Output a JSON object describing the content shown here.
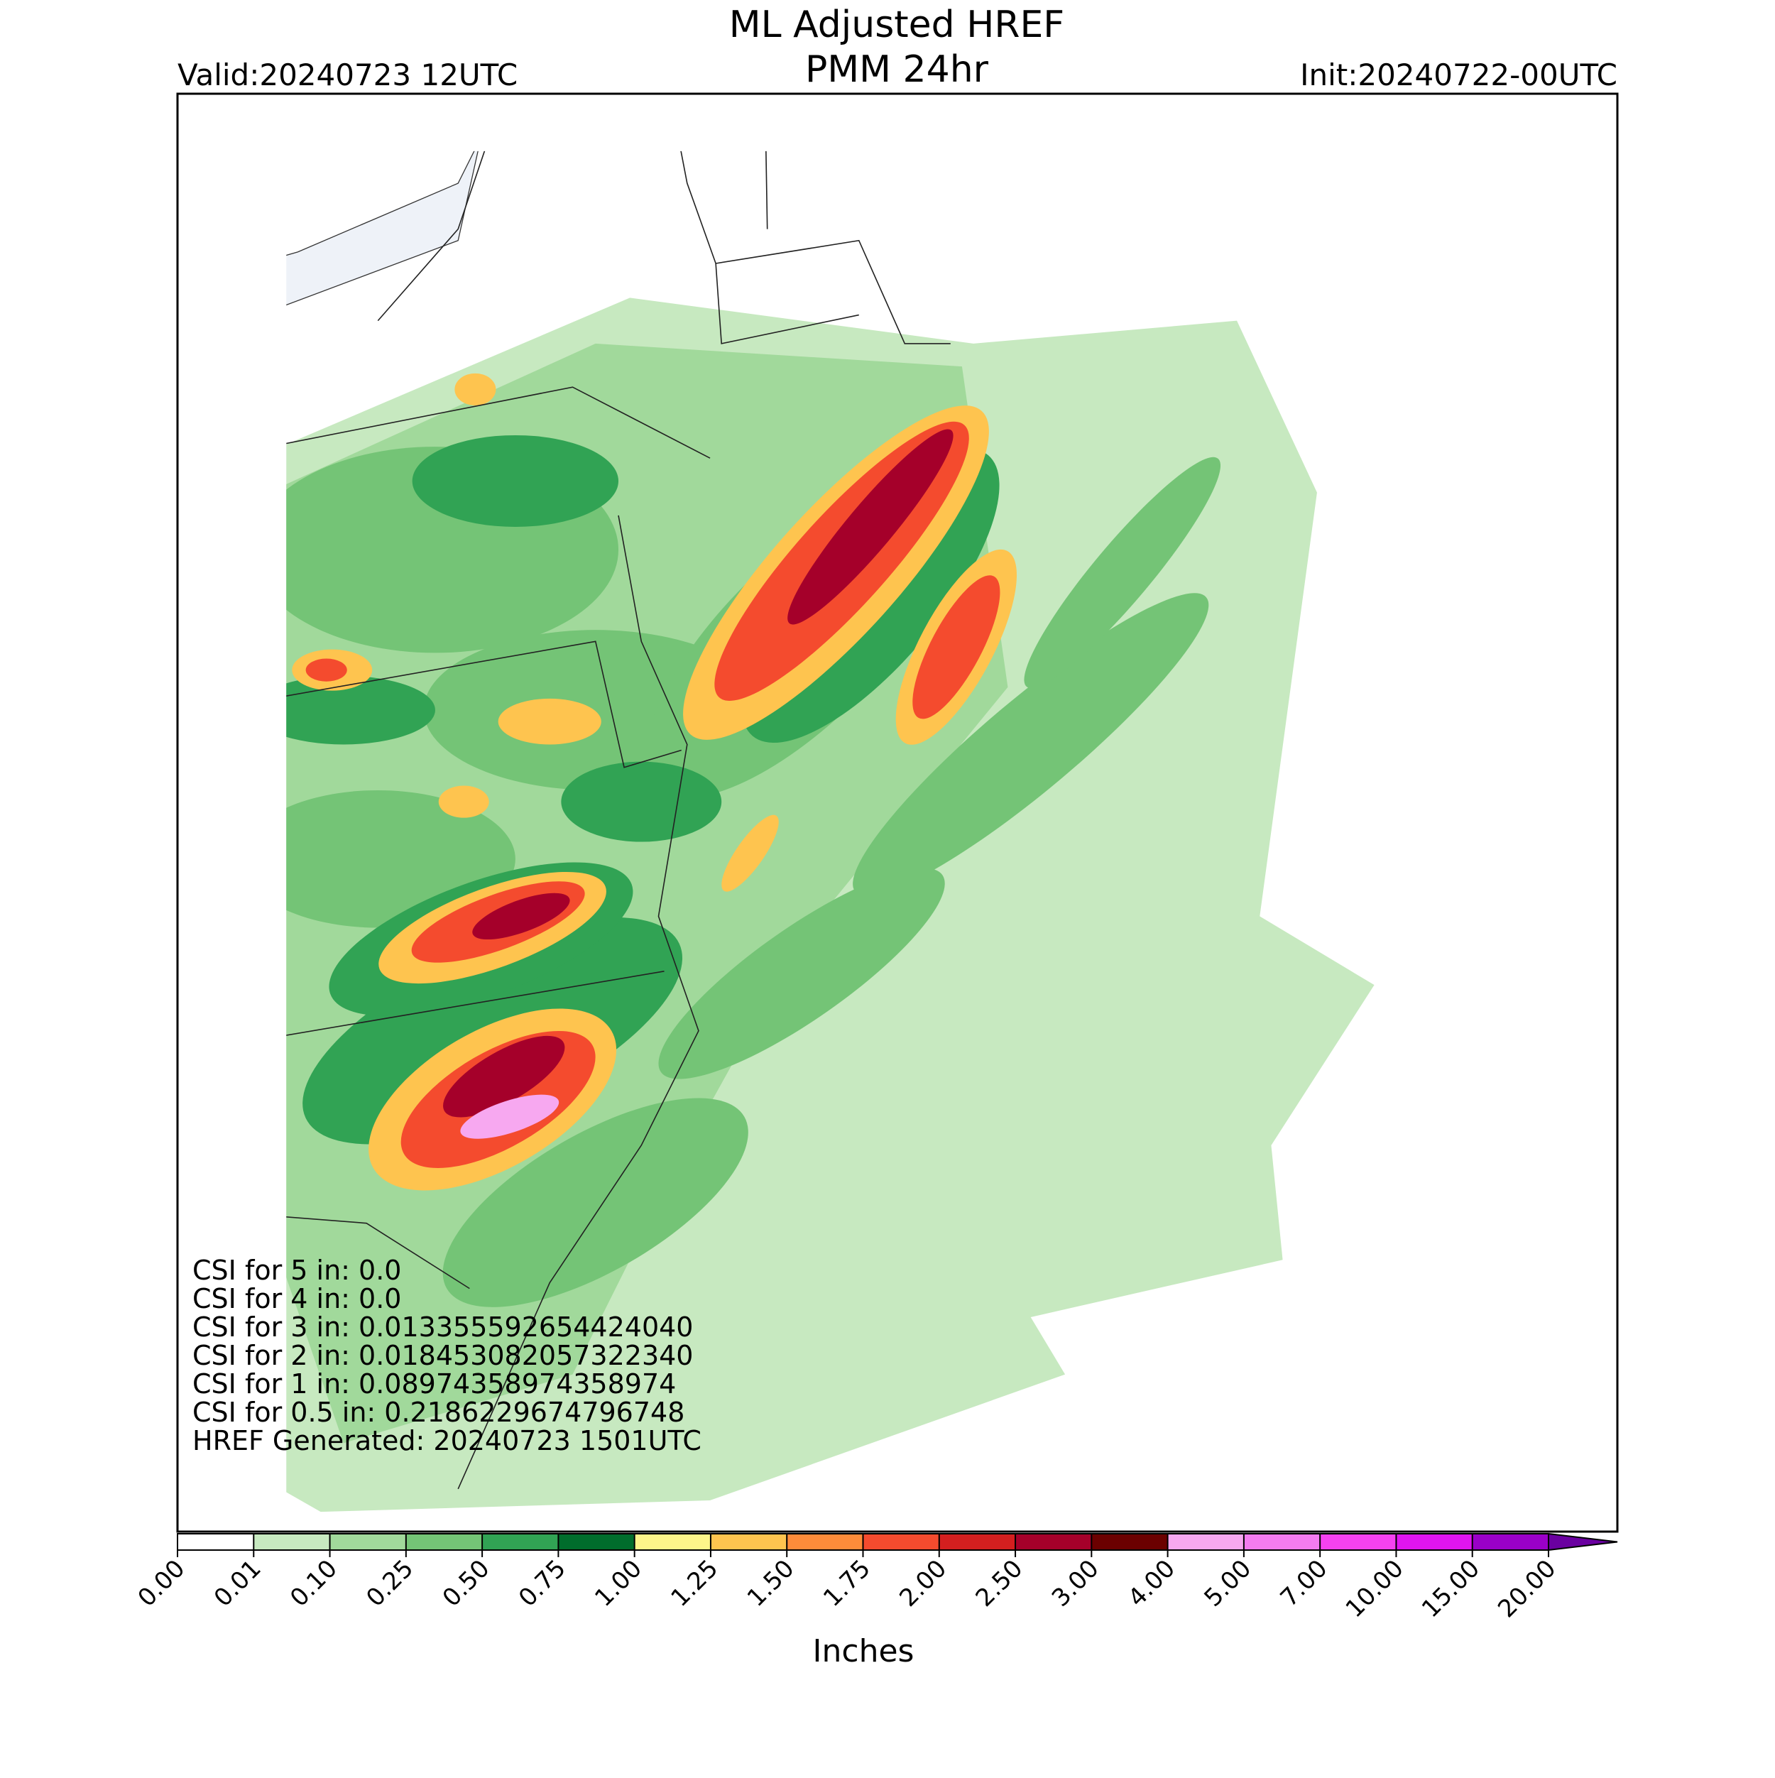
{
  "chart_data": {
    "type": "map",
    "title": "ML Adjusted HREF",
    "subtitle": "PMM 24hr",
    "valid": "Valid:20240723 12UTC",
    "init": "Init:20240722-00UTC",
    "annotations": [
      "CSI for 5 in: 0.0",
      "CSI for 4 in: 0.0",
      "CSI for 3 in: 0.013355592654424040",
      "CSI for 2 in: 0.018453082057322340",
      "CSI for 1 in: 0.08974358974358974",
      "CSI for 0.5 in: 0.2186229674796748",
      "HREF Generated: 20240723 1501UTC"
    ],
    "colorbar": {
      "label": "Inches",
      "ticks": [
        {
          "value": 0,
          "label": "0.00"
        },
        {
          "value": 0.01,
          "label": "0.01"
        },
        {
          "value": 0.1,
          "label": "0.10"
        },
        {
          "value": 0.25,
          "label": "0.25"
        },
        {
          "value": 0.5,
          "label": "0.50"
        },
        {
          "value": 0.75,
          "label": "0.75"
        },
        {
          "value": 1,
          "label": "1.00"
        },
        {
          "value": 1.25,
          "label": "1.25"
        },
        {
          "value": 1.5,
          "label": "1.50"
        },
        {
          "value": 1.75,
          "label": "1.75"
        },
        {
          "value": 2,
          "label": "2.00"
        },
        {
          "value": 2.5,
          "label": "2.50"
        },
        {
          "value": 3,
          "label": "3.00"
        },
        {
          "value": 4,
          "label": "4.00"
        },
        {
          "value": 5,
          "label": "5.00"
        },
        {
          "value": 7,
          "label": "7.00"
        },
        {
          "value": 10,
          "label": "10.00"
        },
        {
          "value": 15,
          "label": "15.00"
        },
        {
          "value": 20,
          "label": "20.00"
        }
      ],
      "colors": [
        "#ffffff",
        "#c7e9c0",
        "#a1d99b",
        "#74c476",
        "#31a354",
        "#006d2c",
        "#fdf58a",
        "#fec44f",
        "#fe8c3a",
        "#f44b2e",
        "#d41f1f",
        "#a5002a",
        "#6b0000",
        "#f7a8f0",
        "#f47cf0",
        "#f542f0",
        "#e015f0",
        "#9a00c8"
      ],
      "extend_color": "#6a00a0"
    }
  }
}
